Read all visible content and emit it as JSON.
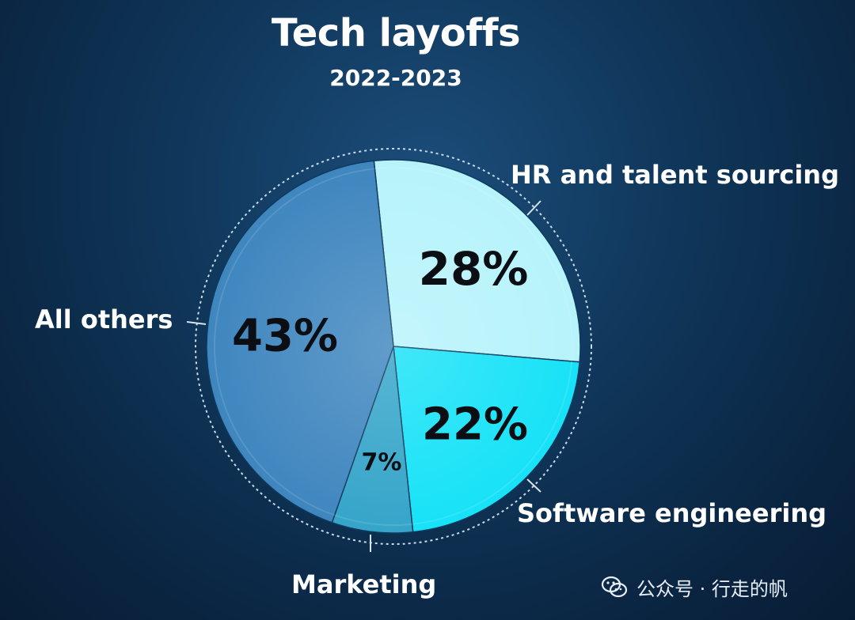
{
  "chart_data": {
    "type": "pie",
    "title": "Tech layoffs",
    "subtitle": "2022-2023",
    "slices": [
      {
        "label": "HR and talent sourcing",
        "value": 28,
        "value_label": "28%",
        "color": "#b7f3fb"
      },
      {
        "label": "Software engineering",
        "value": 22,
        "value_label": "22%",
        "color": "#17e2f7"
      },
      {
        "label": "Marketing",
        "value": 7,
        "value_label": "7%",
        "color": "#35a5c9"
      },
      {
        "label": "All others",
        "value": 43,
        "value_label": "43%",
        "color": "#3f86bf"
      }
    ]
  },
  "watermark": {
    "text": "公众号 · 行走的帆",
    "icon": "wechat-icon"
  }
}
